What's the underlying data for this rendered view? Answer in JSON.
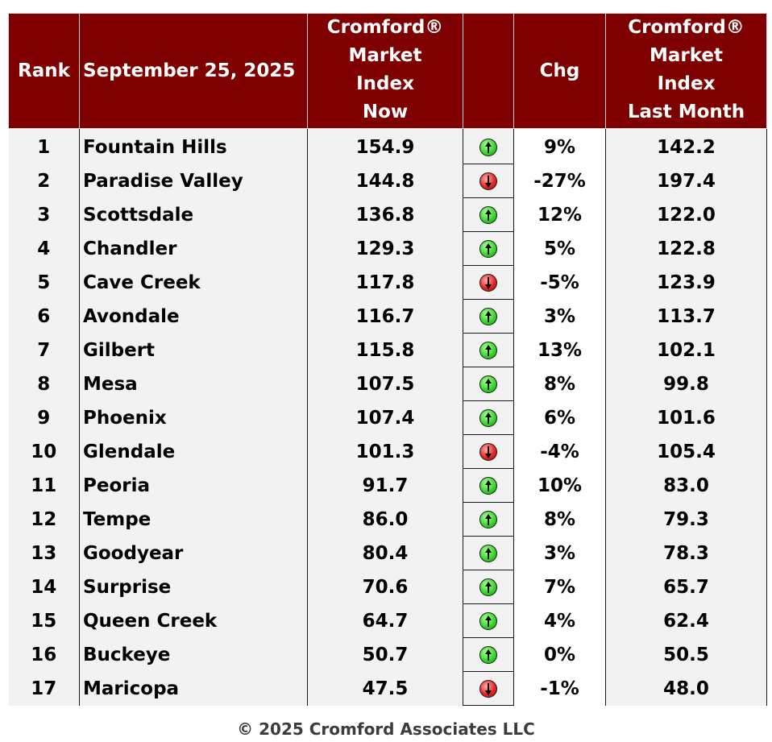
{
  "headers": {
    "rank": "Rank",
    "date": "September 25, 2025",
    "now": [
      "Cromford®",
      "Market",
      "Index",
      "Now"
    ],
    "arrow": "",
    "chg": "Chg",
    "last": [
      "Cromford®",
      "Market",
      "Index",
      "Last Month"
    ]
  },
  "colors": {
    "header_bg": "#7f0000",
    "up_arrow": "#37d82b",
    "down_arrow": "#e52626"
  },
  "rows": [
    {
      "rank": "1",
      "city": "Fountain Hills",
      "now": "154.9",
      "direction": "up-arrow-icon",
      "chg": "9%",
      "last": "142.2"
    },
    {
      "rank": "2",
      "city": "Paradise Valley",
      "now": "144.8",
      "direction": "down-arrow-icon",
      "chg": "-27%",
      "last": "197.4"
    },
    {
      "rank": "3",
      "city": "Scottsdale",
      "now": "136.8",
      "direction": "up-arrow-icon",
      "chg": "12%",
      "last": "122.0"
    },
    {
      "rank": "4",
      "city": "Chandler",
      "now": "129.3",
      "direction": "up-arrow-icon",
      "chg": "5%",
      "last": "122.8"
    },
    {
      "rank": "5",
      "city": "Cave Creek",
      "now": "117.8",
      "direction": "down-arrow-icon",
      "chg": "-5%",
      "last": "123.9"
    },
    {
      "rank": "6",
      "city": "Avondale",
      "now": "116.7",
      "direction": "up-arrow-icon",
      "chg": "3%",
      "last": "113.7"
    },
    {
      "rank": "7",
      "city": "Gilbert",
      "now": "115.8",
      "direction": "up-arrow-icon",
      "chg": "13%",
      "last": "102.1"
    },
    {
      "rank": "8",
      "city": "Mesa",
      "now": "107.5",
      "direction": "up-arrow-icon",
      "chg": "8%",
      "last": "99.8"
    },
    {
      "rank": "9",
      "city": "Phoenix",
      "now": "107.4",
      "direction": "up-arrow-icon",
      "chg": "6%",
      "last": "101.6"
    },
    {
      "rank": "10",
      "city": "Glendale",
      "now": "101.3",
      "direction": "down-arrow-icon",
      "chg": "-4%",
      "last": "105.4"
    },
    {
      "rank": "11",
      "city": "Peoria",
      "now": "91.7",
      "direction": "up-arrow-icon",
      "chg": "10%",
      "last": "83.0"
    },
    {
      "rank": "12",
      "city": "Tempe",
      "now": "86.0",
      "direction": "up-arrow-icon",
      "chg": "8%",
      "last": "79.3"
    },
    {
      "rank": "13",
      "city": "Goodyear",
      "now": "80.4",
      "direction": "up-arrow-icon",
      "chg": "3%",
      "last": "78.3"
    },
    {
      "rank": "14",
      "city": "Surprise",
      "now": "70.6",
      "direction": "up-arrow-icon",
      "chg": "7%",
      "last": "65.7"
    },
    {
      "rank": "15",
      "city": "Queen Creek",
      "now": "64.7",
      "direction": "up-arrow-icon",
      "chg": "4%",
      "last": "62.4"
    },
    {
      "rank": "16",
      "city": "Buckeye",
      "now": "50.7",
      "direction": "up-arrow-icon",
      "chg": "0%",
      "last": "50.5"
    },
    {
      "rank": "17",
      "city": "Maricopa",
      "now": "47.5",
      "direction": "down-arrow-icon",
      "chg": "-1%",
      "last": "48.0"
    }
  ],
  "footer": "© 2025 Cromford Associates LLC"
}
